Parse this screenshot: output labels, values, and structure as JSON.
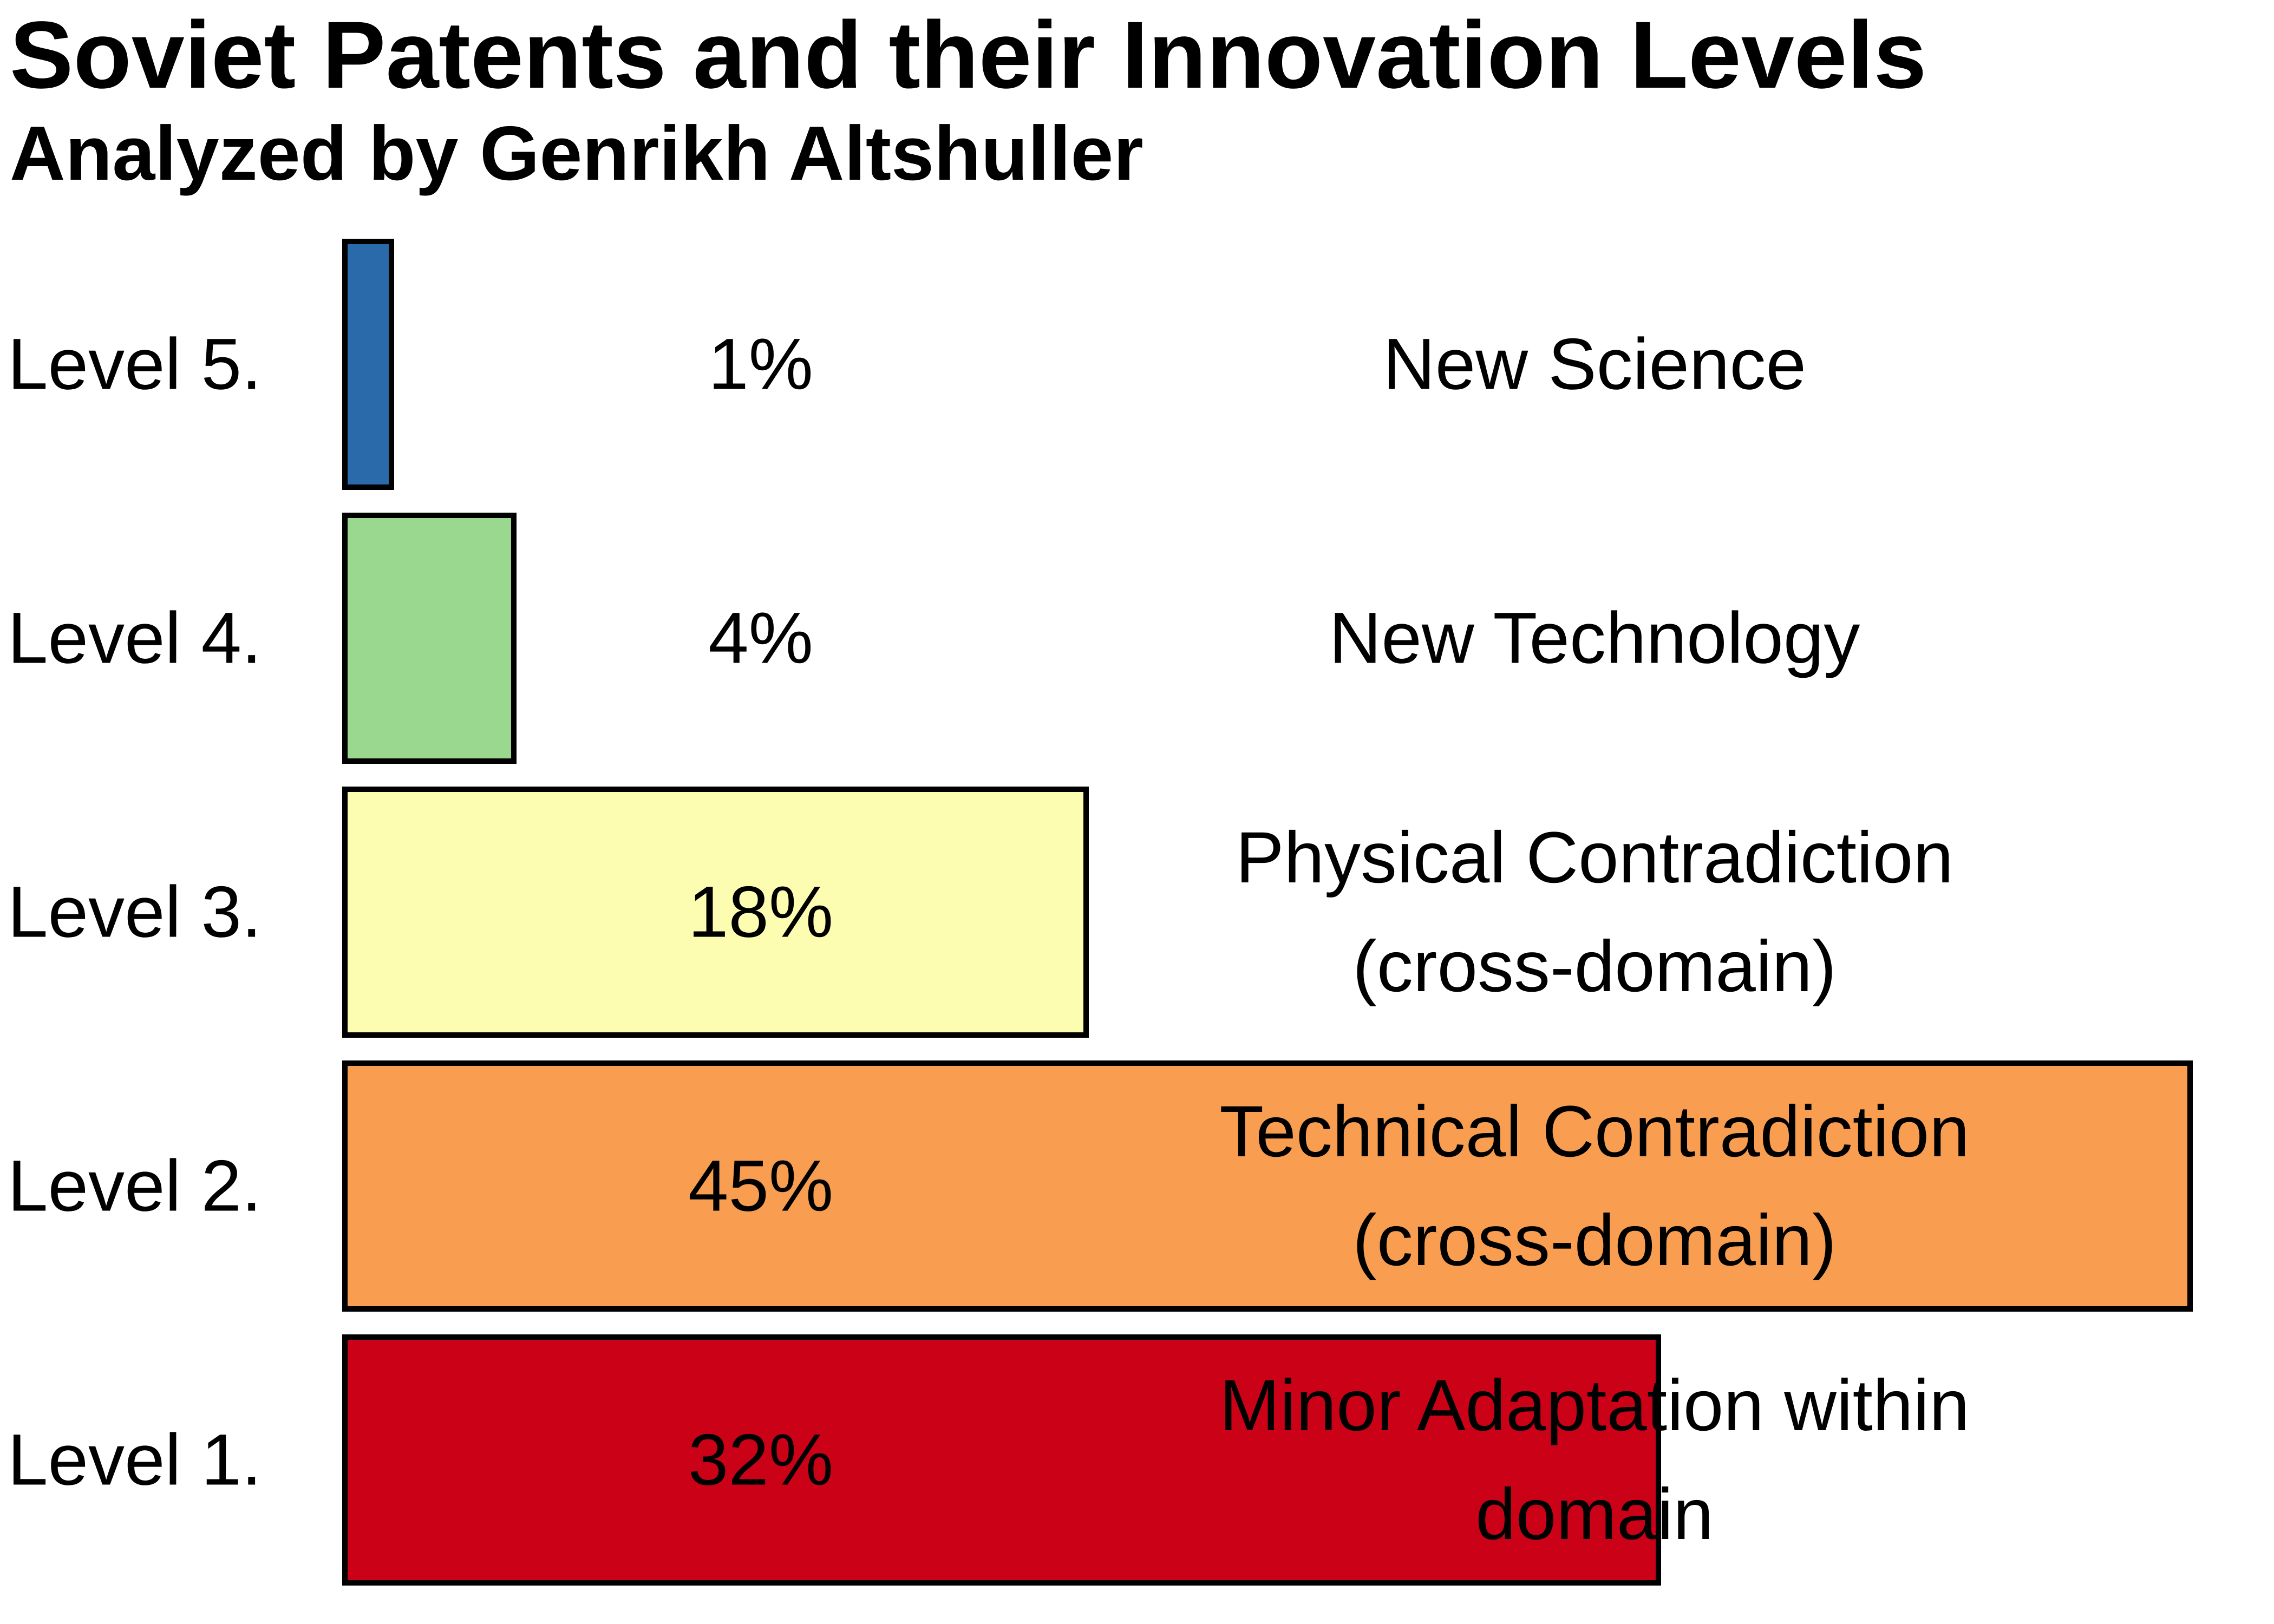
{
  "title": "Soviet Patents and their Innovation Levels",
  "subtitle": "Analyzed by Genrikh Altshuller",
  "chart_data": {
    "type": "bar",
    "orientation": "horizontal",
    "title": "Soviet Patents and their Innovation Levels",
    "subtitle": "Analyzed by Genrikh Altshuller",
    "categories": [
      "Level 5.",
      "Level 4.",
      "Level 3.",
      "Level 2.",
      "Level 1."
    ],
    "values": [
      1,
      4,
      18,
      45,
      32
    ],
    "value_labels": [
      "1%",
      "4%",
      "18%",
      "45%",
      "32%"
    ],
    "descriptions": [
      "New Science",
      "New Technology",
      "Physical Contradiction (cross-domain)",
      "Technical Contradiction (cross-domain)",
      "Minor Adaptation within domain"
    ],
    "description_lines": [
      [
        "New Science"
      ],
      [
        "New Technology"
      ],
      [
        "Physical Contradiction",
        "(cross-domain)"
      ],
      [
        "Technical Contradiction",
        "(cross-domain)"
      ],
      [
        "Minor Adaptation within",
        "domain"
      ]
    ],
    "bar_colors": [
      "#2a6aab",
      "#9ad78f",
      "#fdfdb1",
      "#f99e50",
      "#cb0117"
    ],
    "bar_border_color": "#000000",
    "background_color": "#ffffff",
    "text_color": "#000000",
    "xlim": [
      0,
      45
    ],
    "grid": false,
    "legend": false
  }
}
